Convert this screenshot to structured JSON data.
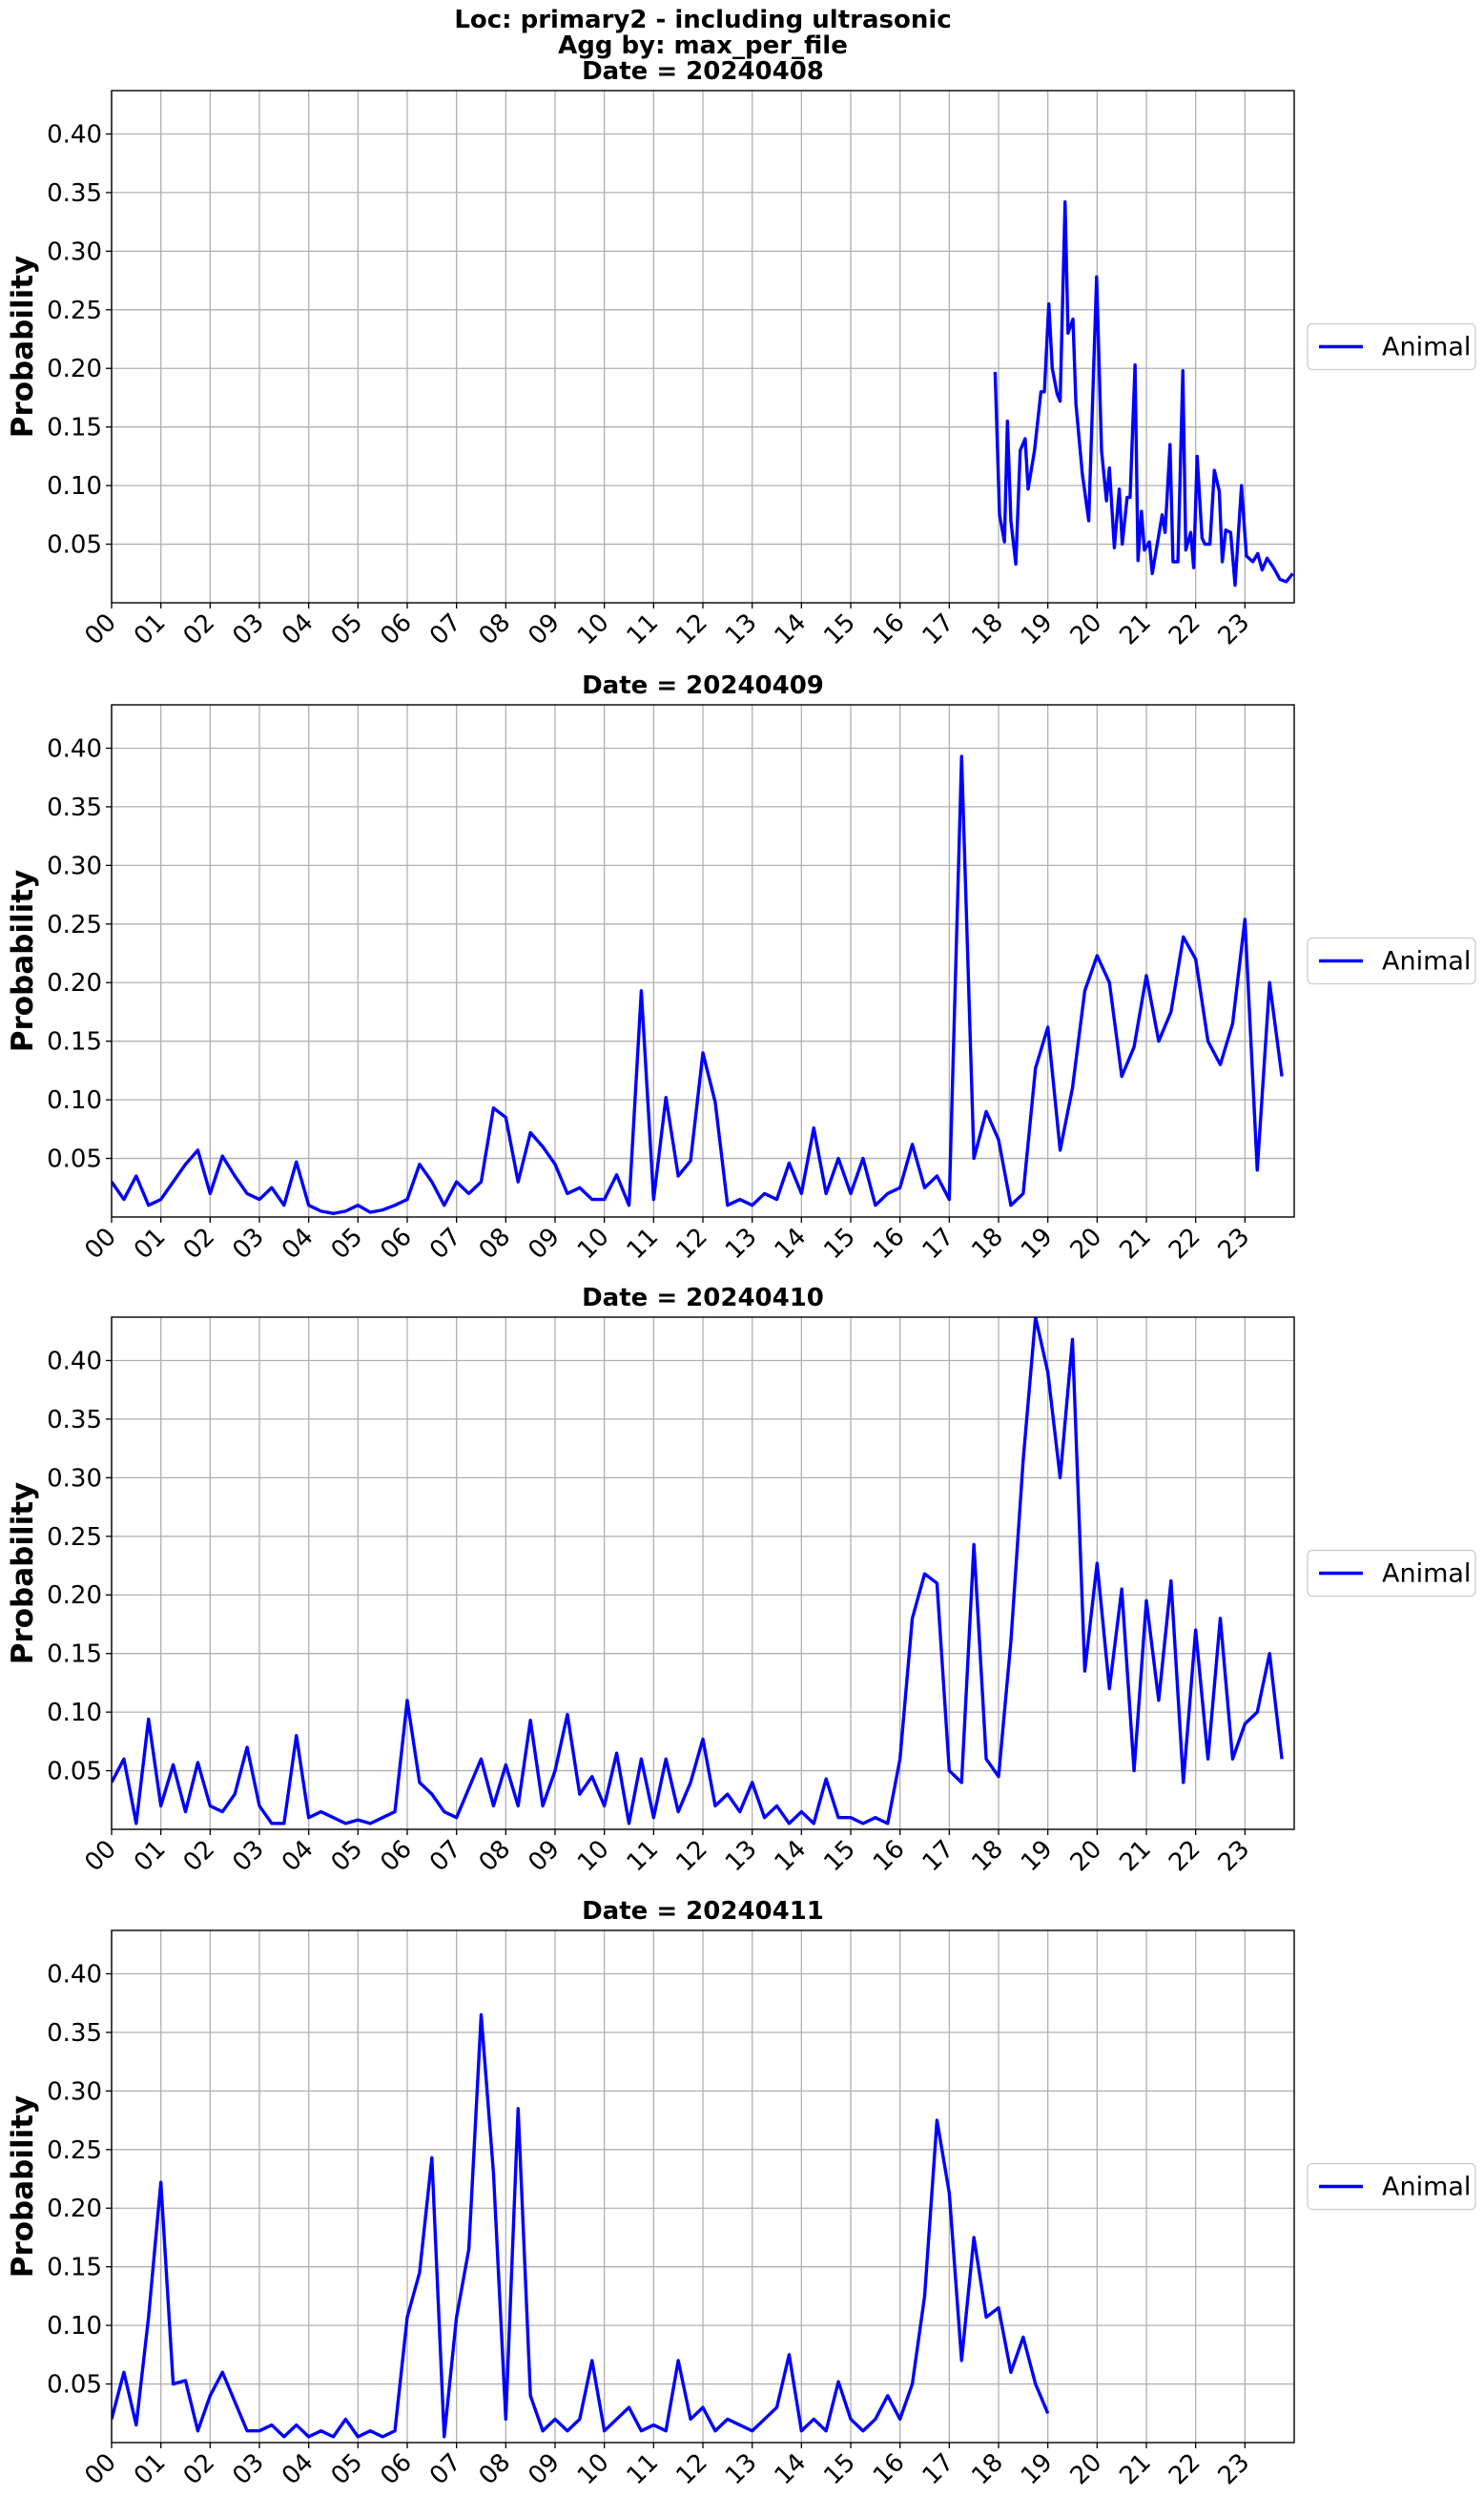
{
  "chart_data": [
    {
      "type": "line",
      "suptitle": [
        "Loc: primary2 - including ultrasonic",
        "Agg by: max_per_file"
      ],
      "title": "Date = 20240408",
      "ylabel": "Probability",
      "xlim": [
        0,
        24
      ],
      "ylim": [
        0,
        0.437
      ],
      "grid": true,
      "legend": "right",
      "xticks": [
        {
          "value": 0,
          "label": "00"
        },
        {
          "value": 1,
          "label": "01"
        },
        {
          "value": 2,
          "label": "02"
        },
        {
          "value": 3,
          "label": "03"
        },
        {
          "value": 4,
          "label": "04"
        },
        {
          "value": 5,
          "label": "05"
        },
        {
          "value": 6,
          "label": "06"
        },
        {
          "value": 7,
          "label": "07"
        },
        {
          "value": 8,
          "label": "08"
        },
        {
          "value": 9,
          "label": "09"
        },
        10,
        11,
        12,
        13,
        14,
        15,
        16,
        17,
        18,
        19,
        20,
        21,
        22,
        23
      ],
      "yticks": [
        0.05,
        {
          "value": 0.1,
          "label": "0.10"
        },
        0.15,
        {
          "value": 0.2,
          "label": "0.20"
        },
        0.25,
        {
          "value": 0.3,
          "label": "0.30"
        },
        0.35,
        {
          "value": 0.4,
          "label": "0.40"
        }
      ],
      "x": [
        17.93,
        18.02,
        18.12,
        18.18,
        18.25,
        18.35,
        18.44,
        18.54,
        18.6,
        18.73,
        18.86,
        18.93,
        19.02,
        19.09,
        19.19,
        19.25,
        19.35,
        19.41,
        19.51,
        19.57,
        19.7,
        19.83,
        19.99,
        20.09,
        20.19,
        20.25,
        20.35,
        20.45,
        20.51,
        20.61,
        20.67,
        20.77,
        20.83,
        20.9,
        20.96,
        21.06,
        21.12,
        21.22,
        21.32,
        21.38,
        21.48,
        21.54,
        21.64,
        21.74,
        21.8,
        21.9,
        21.96,
        22.03,
        22.13,
        22.19,
        22.29,
        22.38,
        22.48,
        22.54,
        22.61,
        22.71,
        22.8,
        22.93,
        23.03,
        23.16,
        23.26,
        23.35,
        23.45,
        23.58,
        23.71,
        23.84,
        23.97
      ],
      "series": [
        {
          "name": "Animal",
          "color": "#0000ff",
          "values": [
            0.197,
            0.075,
            0.052,
            0.155,
            0.07,
            0.033,
            0.13,
            0.14,
            0.097,
            0.13,
            0.18,
            0.18,
            0.255,
            0.2,
            0.178,
            0.172,
            0.342,
            0.23,
            0.242,
            0.17,
            0.11,
            0.07,
            0.278,
            0.13,
            0.087,
            0.115,
            0.047,
            0.097,
            0.05,
            0.09,
            0.09,
            0.203,
            0.036,
            0.078,
            0.045,
            0.052,
            0.025,
            0.05,
            0.075,
            0.06,
            0.135,
            0.035,
            0.035,
            0.198,
            0.045,
            0.06,
            0.03,
            0.125,
            0.055,
            0.05,
            0.05,
            0.113,
            0.095,
            0.035,
            0.062,
            0.06,
            0.015,
            0.1,
            0.04,
            0.035,
            0.042,
            0.028,
            0.038,
            0.03,
            0.02,
            0.018,
            0.025
          ]
        }
      ]
    },
    {
      "type": "line",
      "title": "Date = 20240409",
      "ylabel": "Probability",
      "xlim": [
        0,
        24
      ],
      "ylim": [
        0,
        0.437
      ],
      "grid": true,
      "legend": "right",
      "xticks": [
        {
          "value": 0,
          "label": "00"
        },
        {
          "value": 1,
          "label": "01"
        },
        {
          "value": 2,
          "label": "02"
        },
        {
          "value": 3,
          "label": "03"
        },
        {
          "value": 4,
          "label": "04"
        },
        {
          "value": 5,
          "label": "05"
        },
        {
          "value": 6,
          "label": "06"
        },
        {
          "value": 7,
          "label": "07"
        },
        {
          "value": 8,
          "label": "08"
        },
        {
          "value": 9,
          "label": "09"
        },
        10,
        11,
        12,
        13,
        14,
        15,
        16,
        17,
        18,
        19,
        20,
        21,
        22,
        23
      ],
      "yticks": [
        0.05,
        {
          "value": 0.1,
          "label": "0.10"
        },
        0.15,
        {
          "value": 0.2,
          "label": "0.20"
        },
        0.25,
        {
          "value": 0.3,
          "label": "0.30"
        },
        0.35,
        {
          "value": 0.4,
          "label": "0.40"
        }
      ],
      "x": [
        0,
        0.25,
        0.5,
        0.75,
        1,
        1.25,
        1.5,
        1.75,
        2,
        2.25,
        2.5,
        2.75,
        3,
        3.25,
        3.5,
        3.75,
        4,
        4.25,
        4.5,
        4.75,
        5,
        5.25,
        5.5,
        5.75,
        6,
        6.25,
        6.5,
        6.75,
        7,
        7.25,
        7.5,
        7.75,
        8,
        8.25,
        8.5,
        8.75,
        9,
        9.25,
        9.5,
        9.75,
        10,
        10.25,
        10.5,
        10.75,
        11,
        11.25,
        11.5,
        11.75,
        12,
        12.25,
        12.5,
        12.75,
        13,
        13.25,
        13.5,
        13.75,
        14,
        14.25,
        14.5,
        14.75,
        15,
        15.25,
        15.5,
        15.75,
        16,
        16.25,
        16.5,
        16.75,
        17,
        17.25,
        17.5,
        17.75,
        18,
        18.25,
        18.5,
        18.75,
        19,
        19.25,
        19.5,
        19.75,
        20,
        20.25,
        20.5,
        20.75,
        21,
        21.25,
        21.5,
        21.75,
        22,
        22.25,
        22.5,
        22.75,
        23,
        23.25,
        23.5,
        23.75
      ],
      "series": [
        {
          "name": "Animal",
          "color": "#0000ff",
          "values": [
            0.03,
            0.015,
            0.035,
            0.01,
            0.015,
            0.03,
            0.045,
            0.057,
            0.02,
            0.052,
            0.035,
            0.02,
            0.015,
            0.025,
            0.01,
            0.047,
            0.01,
            0.005,
            0.003,
            0.005,
            0.01,
            0.004,
            0.006,
            0.01,
            0.015,
            0.045,
            0.03,
            0.01,
            0.03,
            0.02,
            0.03,
            0.093,
            0.085,
            0.03,
            0.072,
            0.06,
            0.045,
            0.02,
            0.025,
            0.015,
            0.015,
            0.036,
            0.01,
            0.193,
            0.015,
            0.102,
            0.035,
            0.048,
            0.14,
            0.098,
            0.01,
            0.015,
            0.01,
            0.02,
            0.015,
            0.046,
            0.02,
            0.076,
            0.02,
            0.05,
            0.02,
            0.05,
            0.01,
            0.02,
            0.025,
            0.062,
            0.025,
            0.035,
            0.015,
            0.393,
            0.05,
            0.09,
            0.066,
            0.01,
            0.02,
            0.127,
            0.162,
            0.057,
            0.11,
            0.193,
            0.223,
            0.2,
            0.12,
            0.145,
            0.206,
            0.15,
            0.175,
            0.239,
            0.22,
            0.15,
            0.13,
            0.165,
            0.254,
            0.04,
            0.2,
            0.12
          ]
        }
      ]
    },
    {
      "type": "line",
      "title": "Date = 20240410",
      "ylabel": "Probability",
      "xlim": [
        0,
        24
      ],
      "ylim": [
        0,
        0.437
      ],
      "grid": true,
      "legend": "right",
      "xticks": [
        {
          "value": 0,
          "label": "00"
        },
        {
          "value": 1,
          "label": "01"
        },
        {
          "value": 2,
          "label": "02"
        },
        {
          "value": 3,
          "label": "03"
        },
        {
          "value": 4,
          "label": "04"
        },
        {
          "value": 5,
          "label": "05"
        },
        {
          "value": 6,
          "label": "06"
        },
        {
          "value": 7,
          "label": "07"
        },
        {
          "value": 8,
          "label": "08"
        },
        {
          "value": 9,
          "label": "09"
        },
        10,
        11,
        12,
        13,
        14,
        15,
        16,
        17,
        18,
        19,
        20,
        21,
        22,
        23
      ],
      "yticks": [
        0.05,
        {
          "value": 0.1,
          "label": "0.10"
        },
        0.15,
        {
          "value": 0.2,
          "label": "0.20"
        },
        0.25,
        {
          "value": 0.3,
          "label": "0.30"
        },
        0.35,
        {
          "value": 0.4,
          "label": "0.40"
        }
      ],
      "x": [
        0,
        0.25,
        0.5,
        0.75,
        1,
        1.25,
        1.5,
        1.75,
        2,
        2.25,
        2.5,
        2.75,
        3,
        3.25,
        3.5,
        3.75,
        4,
        4.25,
        4.5,
        4.75,
        5,
        5.25,
        5.5,
        5.75,
        6,
        6.25,
        6.5,
        6.75,
        7,
        7.25,
        7.5,
        7.75,
        8,
        8.25,
        8.5,
        8.75,
        9,
        9.25,
        9.5,
        9.75,
        10,
        10.25,
        10.5,
        10.75,
        11,
        11.25,
        11.5,
        11.75,
        12,
        12.25,
        12.5,
        12.75,
        13,
        13.25,
        13.5,
        13.75,
        14,
        14.25,
        14.5,
        14.75,
        15,
        15.25,
        15.5,
        15.75,
        16,
        16.25,
        16.5,
        16.75,
        17,
        17.25,
        17.5,
        17.75,
        18,
        18.25,
        18.5,
        18.75,
        19,
        19.25,
        19.5,
        19.75,
        20,
        20.25,
        20.5,
        20.75,
        21,
        21.25,
        21.5,
        21.75,
        22,
        22.25,
        22.5,
        22.75,
        23,
        23.25,
        23.5,
        23.75
      ],
      "series": [
        {
          "name": "Animal",
          "color": "#0000ff",
          "values": [
            0.04,
            0.06,
            0.005,
            0.094,
            0.02,
            0.055,
            0.015,
            0.057,
            0.02,
            0.015,
            0.03,
            0.07,
            0.02,
            0.005,
            0.005,
            0.08,
            0.01,
            0.015,
            0.01,
            0.005,
            0.008,
            0.005,
            0.01,
            0.015,
            0.11,
            0.04,
            0.03,
            0.015,
            0.01,
            0.035,
            0.06,
            0.02,
            0.055,
            0.02,
            0.093,
            0.02,
            0.05,
            0.098,
            0.03,
            0.045,
            0.02,
            0.065,
            0.005,
            0.06,
            0.01,
            0.06,
            0.015,
            0.04,
            0.077,
            0.02,
            0.03,
            0.015,
            0.04,
            0.01,
            0.02,
            0.005,
            0.015,
            0.005,
            0.043,
            0.01,
            0.01,
            0.005,
            0.01,
            0.005,
            0.06,
            0.18,
            0.218,
            0.21,
            0.05,
            0.04,
            0.243,
            0.06,
            0.045,
            0.16,
            0.315,
            0.437,
            0.39,
            0.3,
            0.418,
            0.135,
            0.227,
            0.12,
            0.205,
            0.05,
            0.195,
            0.11,
            0.212,
            0.04,
            0.17,
            0.06,
            0.18,
            0.06,
            0.09,
            0.1,
            0.15,
            0.06
          ]
        }
      ]
    },
    {
      "type": "line",
      "title": "Date = 20240411",
      "ylabel": "Probability",
      "xlim": [
        0,
        24
      ],
      "ylim": [
        0,
        0.437
      ],
      "grid": true,
      "legend": "right",
      "xticks": [
        {
          "value": 0,
          "label": "00"
        },
        {
          "value": 1,
          "label": "01"
        },
        {
          "value": 2,
          "label": "02"
        },
        {
          "value": 3,
          "label": "03"
        },
        {
          "value": 4,
          "label": "04"
        },
        {
          "value": 5,
          "label": "05"
        },
        {
          "value": 6,
          "label": "06"
        },
        {
          "value": 7,
          "label": "07"
        },
        {
          "value": 8,
          "label": "08"
        },
        {
          "value": 9,
          "label": "09"
        },
        10,
        11,
        12,
        13,
        14,
        15,
        16,
        17,
        18,
        19,
        20,
        21,
        22,
        23
      ],
      "yticks": [
        0.05,
        {
          "value": 0.1,
          "label": "0.10"
        },
        0.15,
        {
          "value": 0.2,
          "label": "0.20"
        },
        0.25,
        {
          "value": 0.3,
          "label": "0.30"
        },
        0.35,
        {
          "value": 0.4,
          "label": "0.40"
        }
      ],
      "x": [
        0,
        0.25,
        0.5,
        0.75,
        1,
        1.25,
        1.5,
        1.75,
        2,
        2.25,
        2.5,
        2.75,
        3,
        3.25,
        3.5,
        3.75,
        4,
        4.25,
        4.5,
        4.75,
        5,
        5.25,
        5.5,
        5.75,
        6,
        6.25,
        6.5,
        6.75,
        7,
        7.25,
        7.5,
        7.75,
        8,
        8.25,
        8.5,
        8.75,
        9,
        9.25,
        9.5,
        9.75,
        10,
        10.25,
        10.5,
        10.75,
        11,
        11.25,
        11.5,
        11.75,
        12,
        12.25,
        12.5,
        12.75,
        13,
        13.25,
        13.5,
        13.75,
        14,
        14.25,
        14.5,
        14.75,
        15,
        15.25,
        15.5,
        15.75,
        16,
        16.25,
        16.5,
        16.75,
        17,
        17.25,
        17.5,
        17.75,
        18,
        18.25,
        18.5,
        18.75,
        19
      ],
      "series": [
        {
          "name": "Animal",
          "color": "#0000ff",
          "values": [
            0.02,
            0.06,
            0.015,
            0.107,
            0.222,
            0.05,
            0.053,
            0.01,
            0.04,
            0.06,
            0.035,
            0.01,
            0.01,
            0.015,
            0.005,
            0.015,
            0.005,
            0.01,
            0.005,
            0.02,
            0.005,
            0.01,
            0.005,
            0.01,
            0.107,
            0.145,
            0.243,
            0.005,
            0.107,
            0.165,
            0.365,
            0.23,
            0.02,
            0.285,
            0.04,
            0.01,
            0.02,
            0.01,
            0.02,
            0.07,
            0.01,
            0.02,
            0.03,
            0.01,
            0.015,
            0.01,
            0.07,
            0.02,
            0.03,
            0.01,
            0.02,
            0.015,
            0.01,
            0.02,
            0.03,
            0.075,
            0.01,
            0.02,
            0.01,
            0.052,
            0.02,
            0.01,
            0.02,
            0.04,
            0.02,
            0.05,
            0.125,
            0.275,
            0.213,
            0.07,
            0.175,
            0.107,
            0.115,
            0.06,
            0.09,
            0.05,
            0.025
          ]
        }
      ]
    }
  ]
}
